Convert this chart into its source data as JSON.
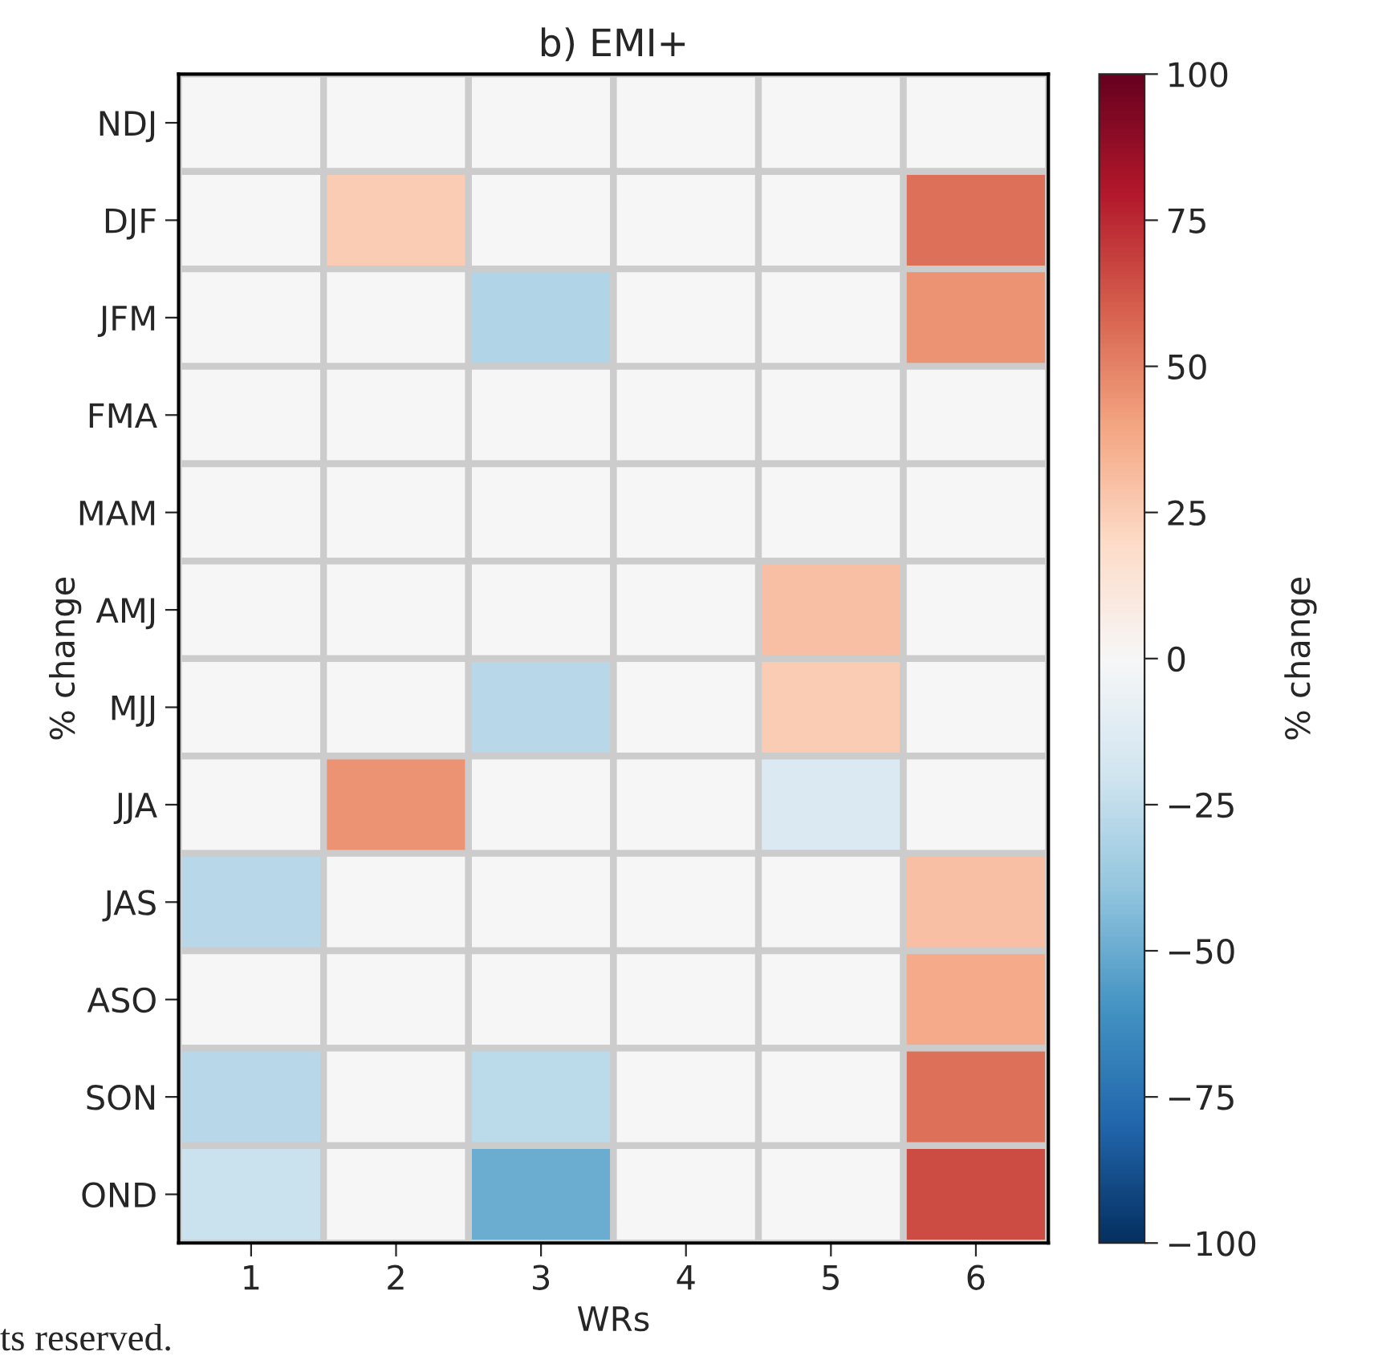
{
  "chart_data": {
    "type": "heatmap",
    "title": "b) EMI+",
    "xlabel": "WRs",
    "ylabel": "% change",
    "clabel": "% change",
    "categories": [
      "1",
      "2",
      "3",
      "4",
      "5",
      "6"
    ],
    "y_categories": [
      "NDJ",
      "DJF",
      "JFM",
      "FMA",
      "MAM",
      "AMJ",
      "MJJ",
      "JJA",
      "JAS",
      "ASO",
      "SON",
      "OND"
    ],
    "cells": [
      [
        0,
        0,
        0,
        0,
        0,
        0
      ],
      [
        0,
        25,
        0,
        0,
        0,
        55
      ],
      [
        0,
        0,
        -30,
        0,
        0,
        45
      ],
      [
        0,
        0,
        0,
        0,
        0,
        0
      ],
      [
        0,
        0,
        0,
        0,
        0,
        0
      ],
      [
        0,
        0,
        0,
        0,
        30,
        0
      ],
      [
        0,
        0,
        -28,
        0,
        25,
        0
      ],
      [
        0,
        45,
        0,
        0,
        -15,
        0
      ],
      [
        -28,
        0,
        0,
        0,
        0,
        30
      ],
      [
        0,
        0,
        0,
        0,
        0,
        38
      ],
      [
        -28,
        0,
        -27,
        0,
        0,
        55
      ],
      [
        -22,
        0,
        -50,
        0,
        0,
        65
      ]
    ],
    "clim": [
      -100,
      100
    ],
    "cticks": [
      -100,
      -75,
      -50,
      -25,
      0,
      25,
      50,
      75,
      100
    ],
    "annotations": [
      "ts reserved."
    ]
  }
}
